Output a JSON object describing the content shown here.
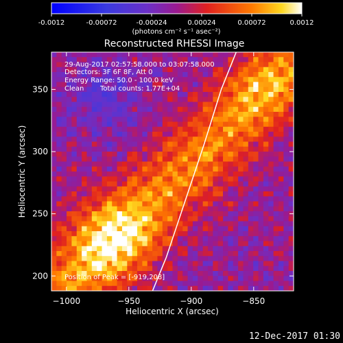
{
  "colorbar": {
    "ticks": [
      "-0.0012",
      "-0.00072",
      "-0.00024",
      "0.00024",
      "0.00072",
      "0.0012"
    ],
    "tick_values": [
      -0.0012,
      -0.00072,
      -0.00024,
      0.00024,
      0.00072,
      0.0012
    ],
    "range": [
      -0.0012,
      0.0012
    ],
    "unit_label": "(photons cm⁻² s⁻¹ asec⁻²)"
  },
  "overlay": {
    "line1": "29-Aug-2017 02:57:58.000 to 03:07:58.000",
    "line2": "Detectors: 3F 6F 8F, Att 0",
    "line3": "Energy Range: 50.0 - 100.0 keV",
    "line4_a": "Clean",
    "line4_b": "Total counts: 1.77E+04",
    "peak": "Position of Peak = [-919,208]"
  },
  "footer": "12-Dec-2017 01:30",
  "chart_data": {
    "type": "heatmap",
    "title": "Reconstructed RHESSI Image",
    "xlabel": "Heliocentric X (arcsec)",
    "ylabel": "Heliocentric Y (arcsec)",
    "xlim": [
      -1012,
      -818
    ],
    "ylim": [
      188,
      380
    ],
    "xticks": [
      -1000,
      -950,
      -900,
      -850
    ],
    "yticks": [
      200,
      250,
      300,
      350
    ],
    "xtick_labels": [
      "−1000",
      "−950",
      "−900",
      "−850"
    ],
    "ytick_labels": [
      "200",
      "250",
      "300",
      "350"
    ],
    "colormap": "blue-purple-red-yellow-white",
    "value_range": [
      -0.0012,
      0.0012
    ],
    "peak_position": [
      -919,
      208
    ],
    "limb_curve": {
      "x": [
        -931,
        -920,
        -905,
        -890,
        -876,
        -864
      ],
      "y": [
        188,
        215,
        260,
        305,
        350,
        380
      ]
    }
  }
}
